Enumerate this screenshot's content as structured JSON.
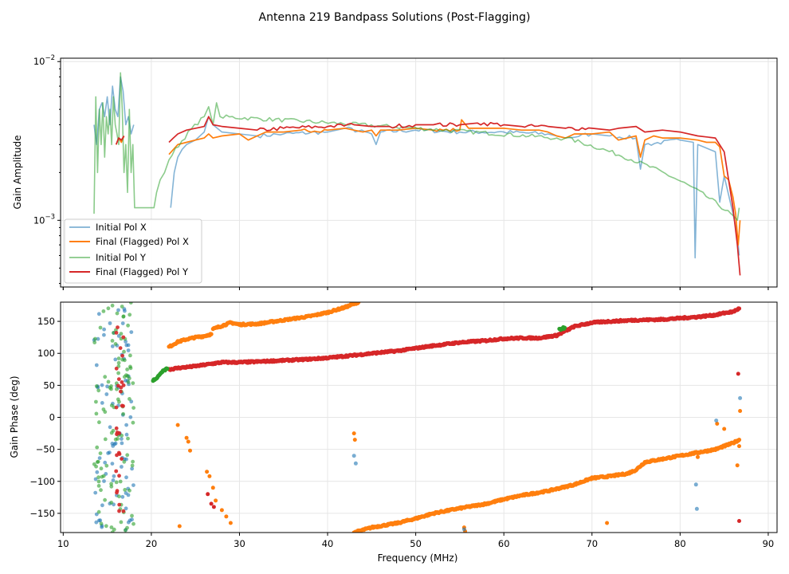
{
  "title": "Antenna 219 Bandpass Solutions (Post-Flagging)",
  "colors": {
    "initial_x": "#1f77b4",
    "final_x": "#ff7f0e",
    "initial_y": "#2ca02c",
    "final_y": "#d62728",
    "grid": "#e6e6e6"
  },
  "legend": {
    "placement": "lower-left of top panel",
    "entries": [
      {
        "label": "Initial Pol X",
        "series": "initial_x"
      },
      {
        "label": "Final (Flagged) Pol X",
        "series": "final_x"
      },
      {
        "label": "Initial Pol Y",
        "series": "initial_y"
      },
      {
        "label": "Final (Flagged) Pol Y",
        "series": "final_y"
      }
    ]
  },
  "chart_data": [
    {
      "type": "line",
      "panel": "top",
      "title": "",
      "xlabel": "",
      "ylabel": "Gain Amplitude",
      "yscale": "log",
      "xlim": [
        9.7,
        91.0
      ],
      "ylim": [
        0.00038,
        0.0105
      ],
      "xticks": [
        10,
        20,
        30,
        40,
        50,
        60,
        70,
        80,
        90
      ],
      "yticks": [
        {
          "value": 0.01,
          "label": "10^-2"
        },
        {
          "value": 0.001,
          "label": "10^-3"
        }
      ],
      "grid": true,
      "series": [
        {
          "name": "Initial Pol X",
          "key": "initial_x",
          "style": "line-translucent",
          "x": [
            13.5,
            13.8,
            14.1,
            14.4,
            14.7,
            15.0,
            15.3,
            15.6,
            15.9,
            16.2,
            16.5,
            16.8,
            17.1,
            17.4,
            17.7,
            18.0,
            22.2,
            22.6,
            23.0,
            23.5,
            24,
            25,
            26,
            26.5,
            27,
            28,
            30,
            32,
            35,
            40,
            42,
            45,
            45.5,
            46,
            50,
            55,
            60,
            65,
            67,
            70,
            72,
            75,
            75.5,
            76,
            80,
            81.5,
            81.7,
            82,
            84,
            84.5,
            85,
            86,
            86.5,
            86.7
          ],
          "y": [
            0.004,
            0.003,
            0.005,
            0.0055,
            0.0045,
            0.006,
            0.004,
            0.007,
            0.005,
            0.0045,
            0.008,
            0.0065,
            0.004,
            0.0045,
            0.0035,
            0.004,
            0.0012,
            0.002,
            0.0025,
            0.0028,
            0.003,
            0.0032,
            0.0036,
            0.0045,
            0.004,
            0.0036,
            0.0035,
            0.0034,
            0.0035,
            0.0036,
            0.0038,
            0.0035,
            0.003,
            0.0036,
            0.0037,
            0.0036,
            0.0036,
            0.0035,
            0.0033,
            0.0035,
            0.0034,
            0.0033,
            0.0021,
            0.003,
            0.0032,
            0.0031,
            0.00058,
            0.003,
            0.0027,
            0.0013,
            0.0019,
            0.0011,
            0.0008,
            0.0006
          ]
        },
        {
          "name": "Final (Flagged) Pol X",
          "key": "final_x",
          "style": "line",
          "x": [
            16.0,
            16.3,
            16.6,
            16.9,
            22.0,
            23,
            24,
            25,
            26,
            26.5,
            27,
            28,
            30,
            31,
            32,
            33,
            35,
            37,
            40,
            42,
            44,
            45,
            45.5,
            46,
            48,
            50,
            52,
            55,
            55.2,
            56,
            58,
            60,
            62,
            64,
            65,
            66,
            67,
            68,
            70,
            72,
            73,
            75,
            75.5,
            76,
            77,
            78,
            80,
            82,
            83,
            84,
            84.5,
            85,
            85.5,
            86,
            86.3,
            86.6,
            86.8
          ],
          "y": [
            0.003,
            0.0033,
            0.0031,
            0.0034,
            0.0026,
            0.003,
            0.0031,
            0.0032,
            0.0033,
            0.0035,
            0.0033,
            0.0034,
            0.0035,
            0.0032,
            0.0034,
            0.0036,
            0.0036,
            0.0037,
            0.0037,
            0.0038,
            0.0036,
            0.0037,
            0.0034,
            0.0037,
            0.0037,
            0.0038,
            0.0037,
            0.0037,
            0.0043,
            0.0038,
            0.0038,
            0.0038,
            0.0037,
            0.0037,
            0.0036,
            0.0034,
            0.0033,
            0.0035,
            0.0035,
            0.0036,
            0.0032,
            0.0034,
            0.0025,
            0.0032,
            0.0034,
            0.0033,
            0.0033,
            0.0032,
            0.0031,
            0.0031,
            0.0029,
            0.0019,
            0.0018,
            0.0014,
            0.0011,
            0.0007,
            0.001
          ]
        },
        {
          "name": "Initial Pol Y",
          "key": "initial_y",
          "style": "line-translucent",
          "x": [
            13.5,
            13.7,
            13.9,
            14.1,
            14.3,
            14.5,
            14.7,
            14.9,
            15.1,
            15.3,
            15.5,
            15.7,
            15.9,
            16.1,
            16.3,
            16.5,
            16.7,
            16.9,
            17.1,
            17.3,
            17.5,
            17.7,
            17.9,
            18.1,
            20.3,
            20.6,
            21.0,
            21.5,
            22.0,
            26.0,
            26.5,
            27.0,
            27.4,
            27.8,
            66.0,
            66.5,
            67.0,
            86.5,
            86.7
          ],
          "y": [
            0.0011,
            0.006,
            0.002,
            0.005,
            0.003,
            0.0055,
            0.0025,
            0.0045,
            0.0035,
            0.005,
            0.003,
            0.006,
            0.004,
            0.0035,
            0.003,
            0.0085,
            0.005,
            0.002,
            0.003,
            0.0015,
            0.005,
            0.002,
            0.003,
            0.0012,
            0.0012,
            0.0015,
            0.0018,
            0.002,
            0.0024,
            0.0045,
            0.0052,
            0.004,
            0.0055,
            0.0045,
            0.0033,
            0.0032,
            0.0033,
            0.001,
            0.0012
          ]
        },
        {
          "name": "Final (Flagged) Pol Y",
          "key": "final_y",
          "style": "line",
          "x": [
            16.0,
            16.3,
            16.6,
            16.9,
            22.0,
            22.5,
            23,
            24,
            25,
            26,
            26.5,
            27,
            28,
            30,
            32,
            35,
            40,
            43,
            45,
            47,
            50,
            52,
            55,
            57,
            60,
            62,
            65,
            67,
            70,
            72,
            73,
            75,
            76,
            78,
            80,
            82,
            84,
            85,
            85.5,
            86,
            86.5,
            86.8
          ],
          "y": [
            0.003,
            0.0033,
            0.0032,
            0.0034,
            0.0031,
            0.0033,
            0.0035,
            0.0037,
            0.0038,
            0.0039,
            0.0045,
            0.004,
            0.0039,
            0.0038,
            0.0037,
            0.0038,
            0.0039,
            0.004,
            0.0039,
            0.0039,
            0.004,
            0.004,
            0.004,
            0.0041,
            0.004,
            0.0039,
            0.0039,
            0.0038,
            0.0038,
            0.0037,
            0.0038,
            0.0039,
            0.0036,
            0.0037,
            0.0036,
            0.0034,
            0.0033,
            0.0027,
            0.0018,
            0.0012,
            0.0007,
            0.00045
          ]
        }
      ]
    },
    {
      "type": "scatter",
      "panel": "bottom",
      "title": "",
      "xlabel": "Frequency (MHz)",
      "ylabel": "Gain Phase (deg)",
      "xlim": [
        9.7,
        91.0
      ],
      "ylim": [
        -180,
        180
      ],
      "xticks": [
        10,
        20,
        30,
        40,
        50,
        60,
        70,
        80,
        90
      ],
      "yticks": [
        150,
        100,
        50,
        0,
        -50,
        -100,
        -150
      ],
      "grid": true,
      "series": [
        {
          "name": "Initial Pol X",
          "key": "initial_x",
          "style": "scatter-noise-band",
          "x_range": [
            13.5,
            18.0
          ],
          "y_range": [
            -180,
            180
          ],
          "count": 90
        },
        {
          "name": "Initial Pol Y",
          "key": "initial_y",
          "style": "scatter-noise-band",
          "x_range": [
            13.5,
            18.0
          ],
          "y_range": [
            -180,
            180
          ],
          "count": 110
        },
        {
          "name": "Final (Flagged) Pol Y",
          "key": "final_y",
          "style": "scatter-noise-band",
          "x_range": [
            16.0,
            16.9
          ],
          "y_range": [
            -150,
            150
          ],
          "count": 30
        },
        {
          "name": "Final (Flagged) Pol X",
          "key": "final_x",
          "style": "scatter-path",
          "segments": [
            {
              "x": [
                22.0,
                23,
                24,
                25,
                26,
                26.8
              ],
              "y": [
                110,
                118,
                122,
                125,
                127,
                130
              ]
            },
            {
              "x": [
                27.0,
                28,
                29,
                30,
                32,
                35,
                38,
                40,
                42,
                43.5
              ],
              "y": [
                138,
                143,
                148,
                145,
                146,
                152,
                158,
                164,
                172,
                180
              ]
            },
            {
              "x": [
                43.0,
                45,
                48,
                50,
                52,
                55,
                58,
                60,
                62,
                65,
                68,
                70,
                72,
                74,
                75,
                76,
                78,
                80,
                82,
                84,
                85,
                86,
                86.7
              ],
              "y": [
                -180,
                -172,
                -165,
                -158,
                -150,
                -142,
                -135,
                -128,
                -122,
                -115,
                -105,
                -95,
                -92,
                -88,
                -82,
                -70,
                -65,
                -60,
                -55,
                -50,
                -45,
                -40,
                -35
              ]
            }
          ]
        },
        {
          "name": "Final (Flagged) Pol Y",
          "key": "final_y",
          "style": "scatter-path",
          "segments": [
            {
              "x": [
                22.0,
                23,
                25,
                27,
                28,
                30,
                32,
                35,
                38,
                40,
                43,
                45,
                48,
                50,
                52,
                55,
                58,
                60,
                62,
                64,
                65,
                66,
                67,
                68,
                70,
                72,
                75,
                78,
                80,
                82,
                84,
                85,
                86,
                86.7
              ],
              "y": [
                75,
                77,
                80,
                84,
                86,
                86,
                87,
                89,
                91,
                93,
                97,
                100,
                104,
                108,
                112,
                117,
                120,
                123,
                124,
                124,
                126,
                128,
                135,
                142,
                148,
                150,
                152,
                153,
                155,
                157,
                160,
                163,
                165,
                170
              ]
            }
          ]
        },
        {
          "name": "Initial Pol Y",
          "key": "initial_y",
          "style": "scatter-path",
          "segments": [
            {
              "x": [
                20.2,
                20.6,
                21.0,
                21.4,
                21.8
              ],
              "y": [
                58,
                60,
                68,
                73,
                76
              ]
            },
            {
              "x": [
                66.3,
                66.6,
                66.9
              ],
              "y": [
                137,
                139,
                140
              ]
            }
          ]
        },
        {
          "name": "Final (Flagged) Pol X",
          "key": "final_x",
          "style": "scatter-points",
          "x": [
            23.0,
            24.0,
            24.2,
            24.4,
            23.2,
            26.3,
            26.6,
            27.0,
            27.3,
            28.0,
            28.5,
            29.0,
            43.0,
            43.1,
            55.5,
            55.6,
            71.7,
            82.0,
            84.2,
            85.0,
            86.5,
            86.7,
            86.8
          ],
          "y": [
            -12,
            -32,
            -38,
            -52,
            -170,
            -85,
            -92,
            -110,
            -130,
            -145,
            -155,
            -165,
            -25,
            -35,
            -172,
            -178,
            -165,
            -62,
            -10,
            -18,
            -75,
            -45,
            10
          ]
        },
        {
          "name": "Initial Pol X",
          "key": "initial_x",
          "style": "scatter-points",
          "x": [
            43.0,
            43.2,
            55.5,
            81.8,
            81.9,
            84.1,
            86.8
          ],
          "y": [
            -60,
            -72,
            -175,
            -105,
            -143,
            -5,
            30
          ]
        },
        {
          "name": "Final (Flagged) Pol Y",
          "key": "final_y",
          "style": "scatter-points",
          "x": [
            26.4,
            26.8,
            27.1,
            86.6,
            86.7
          ],
          "y": [
            -120,
            -135,
            -140,
            68,
            -162
          ]
        }
      ]
    }
  ]
}
